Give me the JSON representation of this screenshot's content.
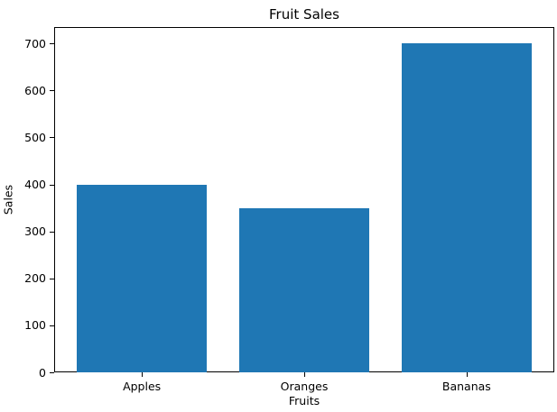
{
  "chart_data": {
    "type": "bar",
    "title": "Fruit Sales",
    "xlabel": "Fruits",
    "ylabel": "Sales",
    "categories": [
      "Apples",
      "Oranges",
      "Bananas"
    ],
    "values": [
      400,
      350,
      700
    ],
    "yticks": [
      0,
      100,
      200,
      300,
      400,
      500,
      600,
      700
    ],
    "ylim": [
      0,
      735
    ],
    "bar_color": "#1f77b4",
    "axis_color": "#000000",
    "background_color": "#ffffff",
    "grid": false,
    "legend_position": "none"
  }
}
